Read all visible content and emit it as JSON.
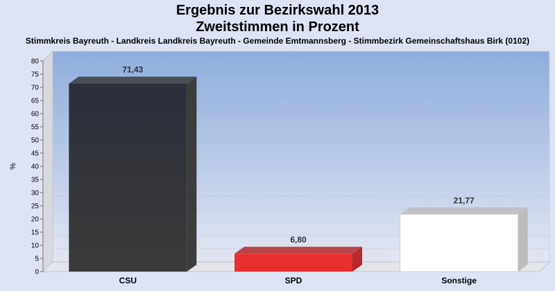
{
  "chart_data": {
    "type": "bar",
    "title": "Ergebnis zur Bezirkswahl 2013",
    "title_line2": "Zweitstimmen in Prozent",
    "subtitle": "Stimmkreis Bayreuth - Landkreis Landkreis Bayreuth - Gemeinde Emtmannsberg - Stimmbezirk Gemeinschaftshaus Birk (0102)",
    "xlabel": "",
    "ylabel": "%",
    "ylim": [
      0,
      80
    ],
    "ytick_step": 5,
    "grid": true,
    "categories": [
      "CSU",
      "SPD",
      "Sonstige"
    ],
    "values": [
      71.43,
      6.8,
      21.77
    ],
    "value_labels": [
      "71,43",
      "6,80",
      "21,77"
    ],
    "colors": [
      "#2e3038",
      "#e8312e",
      "#ffffff"
    ],
    "side_colors": [
      "#3c3c3c",
      "#b52a2a",
      "#bdbdbd"
    ],
    "background_gradient": [
      "#8eaddd",
      "#e3e6f1"
    ]
  }
}
